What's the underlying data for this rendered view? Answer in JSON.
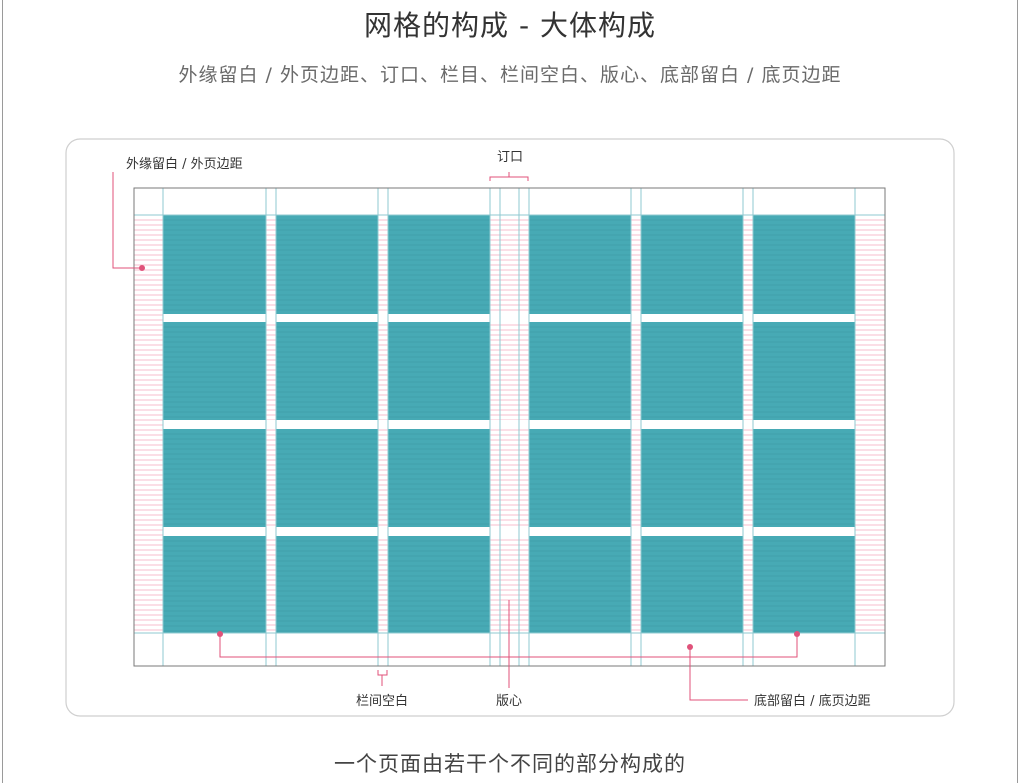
{
  "header": {
    "title": "网格的构成 - 大体构成",
    "subtitle": "外缘留白 / 外页边距、订口、栏目、栏间空白、版心、底部留白 / 底页边距"
  },
  "diagram": {
    "labels": {
      "outer_margin": "外缘留白 / 外页边距",
      "gutter": "订口",
      "column_gap": "栏间空白",
      "type_area": "版心",
      "bottom_margin": "底部留白 / 底页边距"
    },
    "columns_per_page": 3,
    "rows": 4,
    "colors": {
      "cell": "#47aab5",
      "cell_line": "#3b95a0",
      "guide": "#8fc9d0",
      "pink": "#e0527a",
      "pink_light": "#f4a7bd",
      "border": "#cfcfcf"
    }
  },
  "footer": {
    "caption": "一个页面由若干个不同的部分构成的"
  }
}
